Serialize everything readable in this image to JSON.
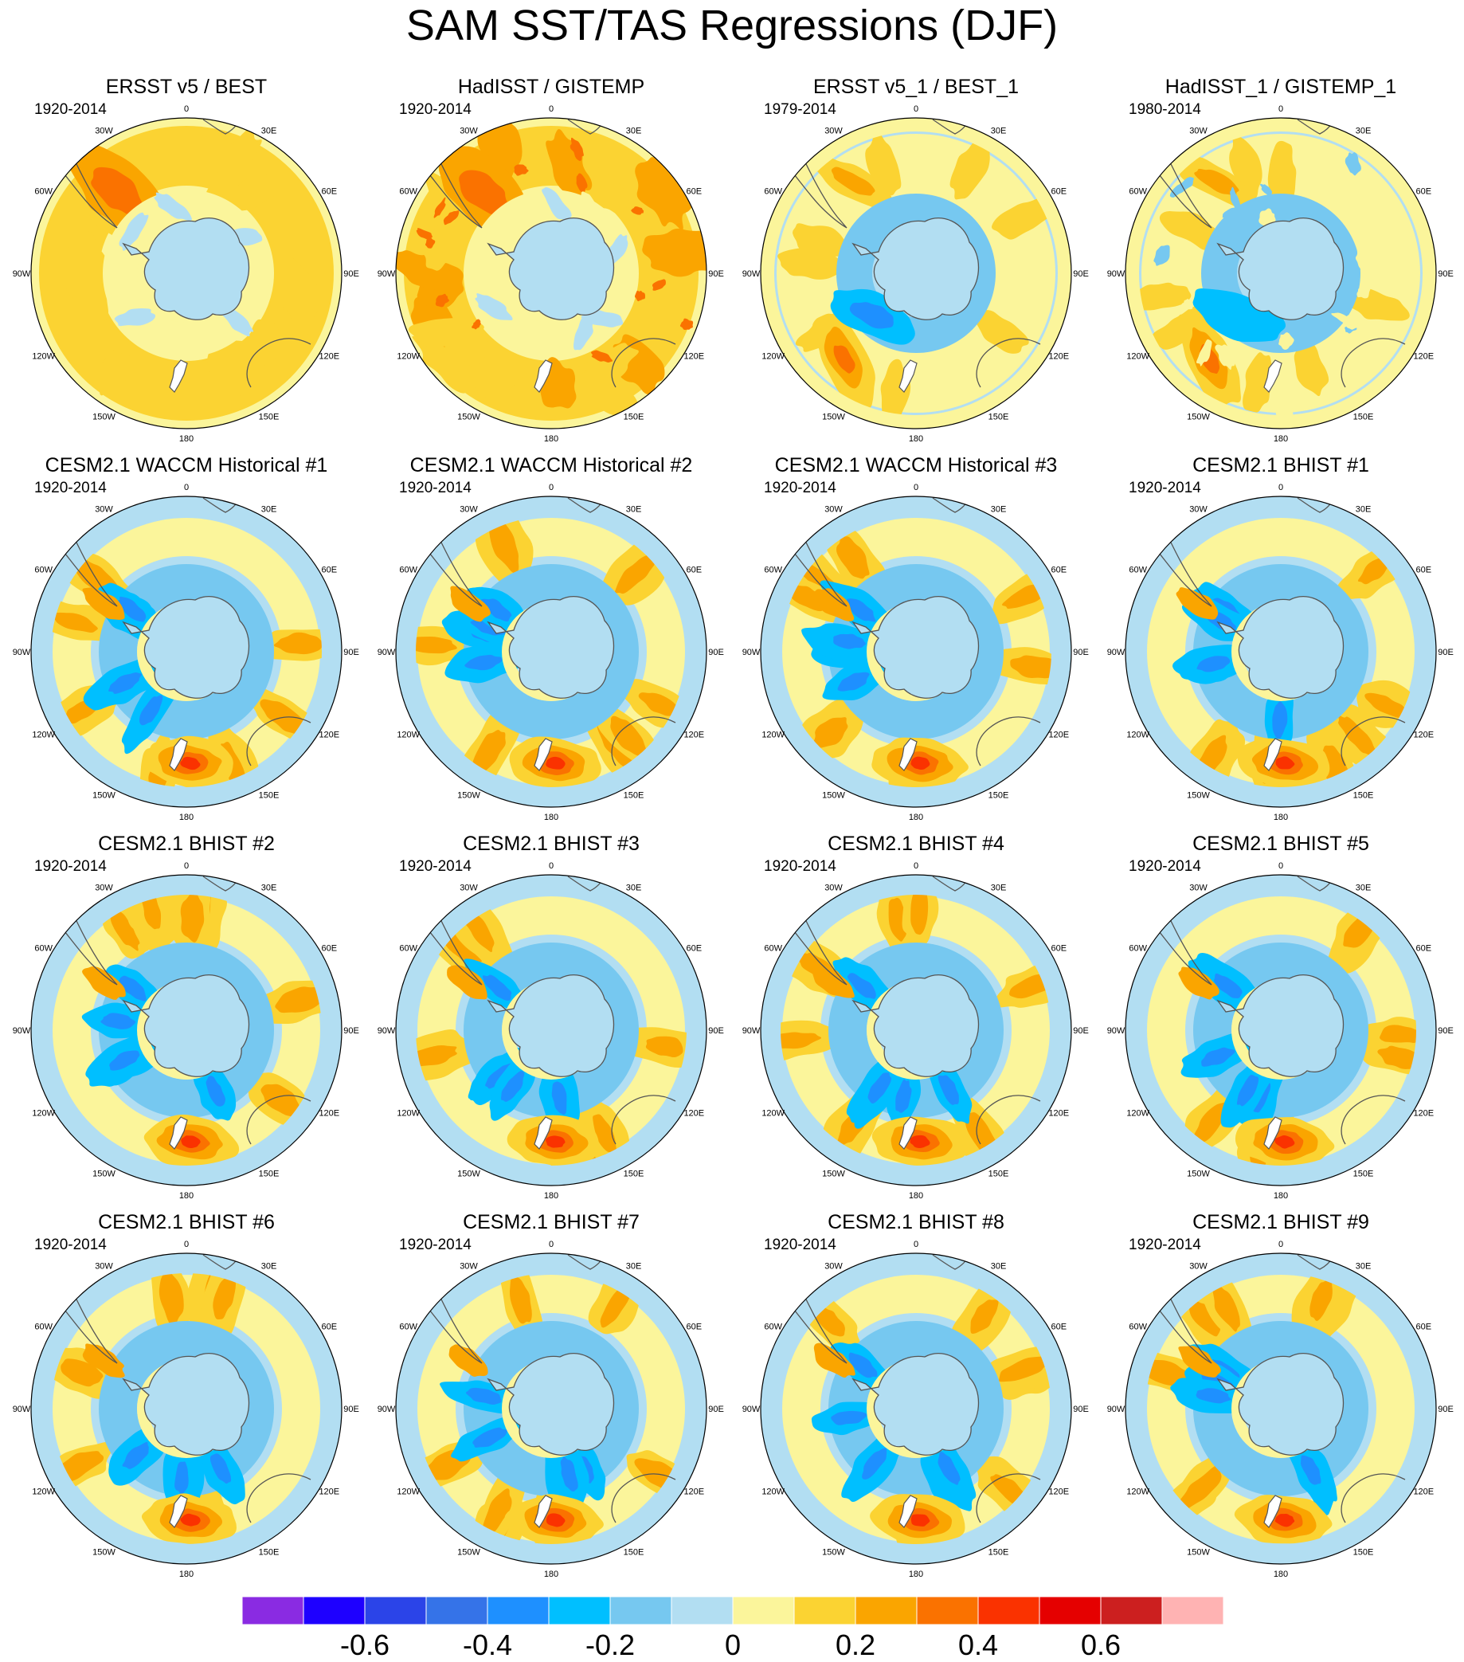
{
  "title": "SAM SST/TAS Regressions (DJF)",
  "panels": [
    {
      "title": "ERSST v5 / BEST",
      "years": "1920-2014",
      "style": "obs-warm"
    },
    {
      "title": "HadISST / GISTEMP",
      "years": "1920-2014",
      "style": "obs-noisy"
    },
    {
      "title": "ERSST v5_1 / BEST_1",
      "years": "1979-2014",
      "style": "obs-recent"
    },
    {
      "title": "HadISST_1 / GISTEMP_1",
      "years": "1980-2014",
      "style": "obs-recent-noisy"
    },
    {
      "title": "CESM2.1 WACCM Historical #1",
      "years": "1920-2014",
      "style": "model"
    },
    {
      "title": "CESM2.1 WACCM Historical #2",
      "years": "1920-2014",
      "style": "model"
    },
    {
      "title": "CESM2.1 WACCM Historical #3",
      "years": "1920-2014",
      "style": "model"
    },
    {
      "title": "CESM2.1 BHIST #1",
      "years": "1920-2014",
      "style": "model"
    },
    {
      "title": "CESM2.1 BHIST #2",
      "years": "1920-2014",
      "style": "model"
    },
    {
      "title": "CESM2.1 BHIST #3",
      "years": "1920-2014",
      "style": "model"
    },
    {
      "title": "CESM2.1 BHIST #4",
      "years": "1920-2014",
      "style": "model"
    },
    {
      "title": "CESM2.1 BHIST #5",
      "years": "1920-2014",
      "style": "model"
    },
    {
      "title": "CESM2.1 BHIST #6",
      "years": "1920-2014",
      "style": "model"
    },
    {
      "title": "CESM2.1 BHIST #7",
      "years": "1920-2014",
      "style": "model"
    },
    {
      "title": "CESM2.1 BHIST #8",
      "years": "1920-2014",
      "style": "model"
    },
    {
      "title": "CESM2.1 BHIST #9",
      "years": "1920-2014",
      "style": "model"
    }
  ],
  "longitude_labels": [
    "0",
    "30E",
    "60E",
    "90E",
    "120E",
    "150E",
    "180",
    "150W",
    "120W",
    "90W",
    "60W",
    "30W"
  ],
  "colorbar": {
    "colors": [
      "#8a2be2",
      "#1e00ff",
      "#2b44e8",
      "#3573e8",
      "#1e90ff",
      "#00bfff",
      "#76c8f0",
      "#b2def2",
      "#fbf59b",
      "#fbd332",
      "#faa500",
      "#fa7200",
      "#fa3200",
      "#e50000",
      "#cc1f1f",
      "#ffb3b3"
    ],
    "tick_labels": [
      "-0.6",
      "-0.4",
      "-0.2",
      "0",
      "0.2",
      "0.4",
      "0.6"
    ],
    "tick_values": [
      -0.6,
      -0.4,
      -0.2,
      0,
      0.2,
      0.4,
      0.6
    ],
    "range": [
      -0.8,
      0.8
    ]
  }
}
